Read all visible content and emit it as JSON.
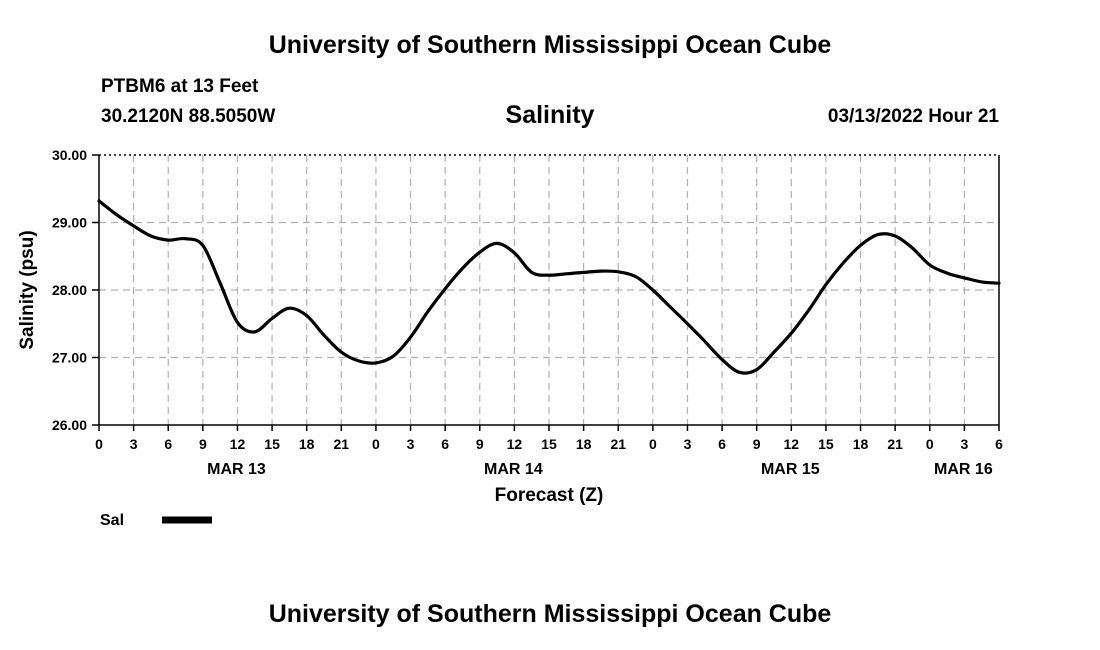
{
  "header": {
    "main_title": "University of Southern Mississippi Ocean Cube",
    "station": "PTBM6 at 13 Feet",
    "coords": "30.2120N  88.5050W",
    "chart_title": "Salinity",
    "datetime": "03/13/2022 Hour 21",
    "footer_title": "University of Southern Mississippi Ocean Cube"
  },
  "colors": {
    "line": "#000000",
    "grid": "#b0b0b0",
    "axis": "#000000"
  },
  "chart_data": {
    "type": "line",
    "title": "Salinity",
    "xlabel": "Forecast (Z)",
    "ylabel": "Salinity (psu)",
    "ylim": [
      26,
      30
    ],
    "xlim": [
      0,
      78
    ],
    "y_ticks": [
      26,
      27,
      28,
      29,
      30
    ],
    "y_tick_labels": [
      "26.00",
      "27.00",
      "28.00",
      "29.00",
      "30.00"
    ],
    "x_tick_hours": [
      0,
      3,
      6,
      9,
      12,
      15,
      18,
      21,
      24,
      27,
      30,
      33,
      36,
      39,
      42,
      45,
      48,
      51,
      54,
      57,
      60,
      63,
      66,
      69,
      72,
      75,
      78
    ],
    "x_tick_labels": [
      "0",
      "3",
      "6",
      "9",
      "12",
      "15",
      "18",
      "21",
      "0",
      "3",
      "6",
      "9",
      "12",
      "15",
      "18",
      "21",
      "0",
      "3",
      "6",
      "9",
      "12",
      "15",
      "18",
      "21",
      "0",
      "3",
      "6"
    ],
    "date_labels": [
      {
        "hour": 12,
        "label": "MAR 13"
      },
      {
        "hour": 36,
        "label": "MAR 14"
      },
      {
        "hour": 60,
        "label": "MAR 15"
      },
      {
        "hour": 75,
        "label": "MAR 16"
      }
    ],
    "grid": true,
    "legend": [
      {
        "name": "Sal",
        "position": "bottom-left"
      }
    ],
    "series": [
      {
        "name": "Sal",
        "x": [
          0,
          1.5,
          3,
          4.5,
          6,
          7.5,
          9,
          10.5,
          12,
          13.5,
          15,
          16.5,
          18,
          19.5,
          21,
          22.5,
          24,
          25.5,
          27,
          28.5,
          30,
          31.5,
          33,
          34.5,
          36,
          37.5,
          39,
          40.5,
          42,
          43.5,
          45,
          46.5,
          48,
          49.5,
          51,
          52.5,
          54,
          55.5,
          57,
          58.5,
          60,
          61.5,
          63,
          64.5,
          66,
          67.5,
          69,
          70.5,
          72,
          73.5,
          75,
          76.5,
          78
        ],
        "y": [
          29.32,
          29.12,
          28.95,
          28.8,
          28.74,
          28.76,
          28.66,
          28.1,
          27.52,
          27.38,
          27.58,
          27.73,
          27.62,
          27.33,
          27.08,
          26.95,
          26.92,
          27.02,
          27.3,
          27.68,
          28.02,
          28.32,
          28.56,
          28.69,
          28.55,
          28.26,
          28.22,
          28.24,
          28.26,
          28.28,
          28.27,
          28.2,
          28.0,
          27.75,
          27.5,
          27.24,
          26.97,
          26.78,
          26.82,
          27.08,
          27.36,
          27.7,
          28.08,
          28.4,
          28.66,
          28.82,
          28.8,
          28.62,
          28.37,
          28.25,
          28.18,
          28.12,
          28.1
        ]
      }
    ]
  }
}
